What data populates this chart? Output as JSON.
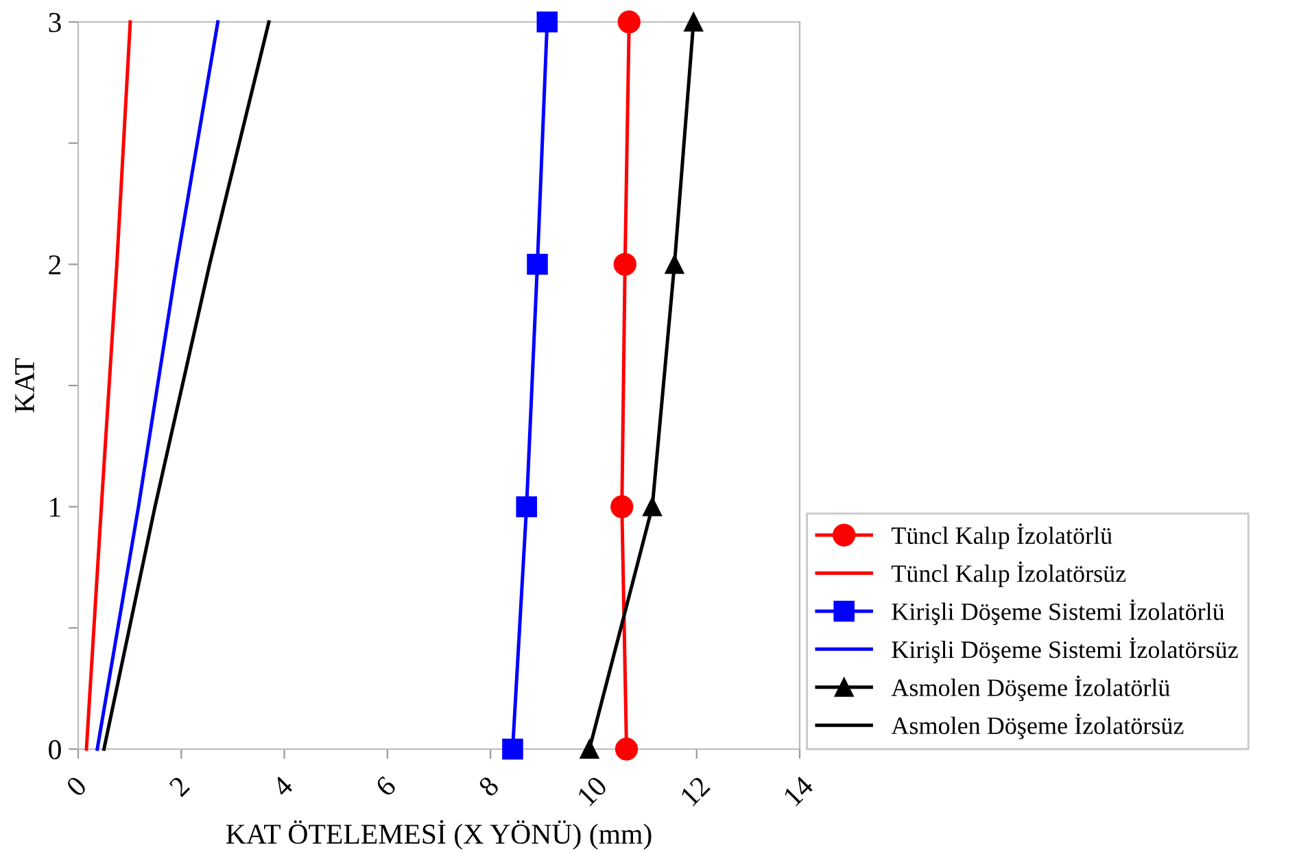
{
  "chart_data": {
    "type": "line",
    "xlabel": "KAT ÖTELEMESİ (X YÖNÜ) (mm)",
    "ylabel": "KAT",
    "xlim": [
      0,
      14
    ],
    "xticks": [
      0,
      2,
      4,
      6,
      8,
      10,
      12,
      14
    ],
    "ylim": [
      0,
      3
    ],
    "yticks": [
      0,
      {
        "value": 0.5,
        "label": null
      },
      1,
      {
        "value": 1.5,
        "label": null
      },
      2,
      {
        "value": 2.5,
        "label": null
      },
      3
    ],
    "grid": false,
    "legend": "bottom right",
    "series": [
      {
        "name": "Tüncl Kalıp İzolatörlü",
        "color": "#ff0000",
        "marker": "circle",
        "x": [
          10.64,
          10.55,
          10.61,
          10.69
        ],
        "values": [
          0,
          1,
          2,
          3
        ]
      },
      {
        "name": "Tüncl Kalıp İzolatörsüz",
        "color": "#ff0000",
        "marker": "none",
        "x": [
          0.16,
          0.45,
          0.75,
          1.01
        ],
        "values": [
          0,
          1,
          2,
          3
        ]
      },
      {
        "name": "Kirişli Döşeme Sistemi İzolatörlü",
        "color": "#0000ff",
        "marker": "square",
        "x": [
          8.43,
          8.7,
          8.91,
          9.1
        ],
        "values": [
          0,
          1,
          2,
          3
        ]
      },
      {
        "name": "Kirişli Döşeme Sistemi İzolatörsüz",
        "color": "#0000ff",
        "marker": "none",
        "x": [
          0.37,
          1.17,
          1.91,
          2.71
        ],
        "values": [
          0,
          1,
          2,
          3
        ]
      },
      {
        "name": "Asmolen Döşeme İzolatörlü",
        "color": "#000000",
        "marker": "triangle",
        "x": [
          9.92,
          11.14,
          11.57,
          11.94
        ],
        "values": [
          0,
          1,
          2,
          3
        ]
      },
      {
        "name": "Asmolen Döşeme İzolatörsüz",
        "color": "#000000",
        "marker": "none",
        "x": [
          0.5,
          1.49,
          2.55,
          3.7
        ],
        "values": [
          0,
          1,
          2,
          3
        ]
      }
    ]
  }
}
